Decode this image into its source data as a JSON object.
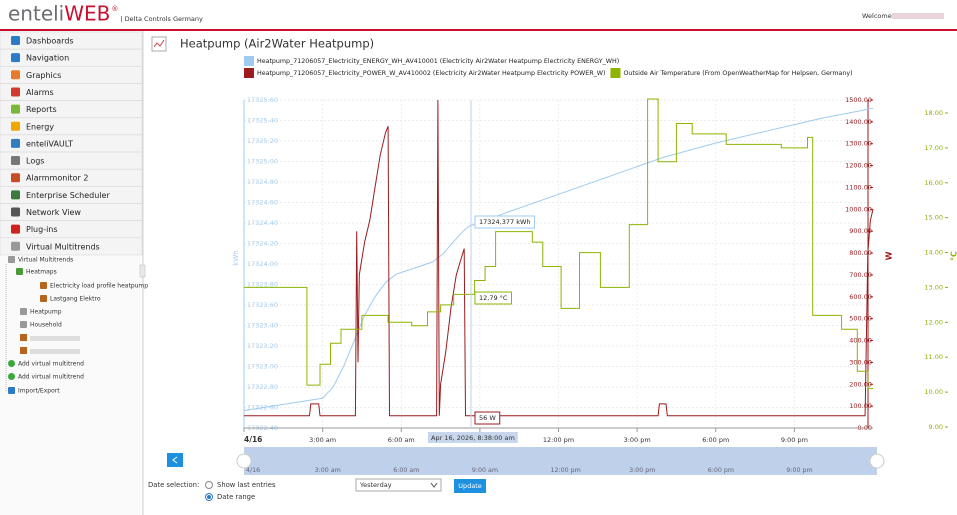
{
  "header": {
    "logo_a": "enteli",
    "logo_b": "WEB",
    "registered": "®",
    "site": "| Delta Controls Germany",
    "welcome": "Welcome"
  },
  "nav": {
    "items": [
      "Dashboards",
      "Navigation",
      "Graphics",
      "Alarms",
      "Reports",
      "Energy",
      "enteliVAULT",
      "Logs",
      "Alarmmonitor 2",
      "Enterprise Scheduler",
      "Network View",
      "Plug-ins",
      "Virtual Multitrends"
    ]
  },
  "tree": {
    "items": [
      "Virtual Multitrends",
      "Heatmaps",
      "Electricity load profile heatpump",
      "Lastgang Elektro",
      "Heatpump",
      "Household",
      "Add virtual multitrend",
      "Add virtual multitrend",
      "Import/Export"
    ]
  },
  "chart_data": {
    "type": "line",
    "title": "Heatpump (Air2Water Heatpump)",
    "xlim": [
      0,
      24
    ],
    "xticks": [
      {
        "value": 0,
        "label": "4/16"
      },
      {
        "value": 3,
        "label": "3:00 am"
      },
      {
        "value": 6,
        "label": "6:00 am"
      },
      {
        "value": 9,
        "label": "9:00 am"
      },
      {
        "value": 12,
        "label": "12:00 pm"
      },
      {
        "value": 15,
        "label": "3:00 pm"
      },
      {
        "value": 18,
        "label": "6:00 pm"
      },
      {
        "value": 21,
        "label": "9:00 pm"
      }
    ],
    "ylim": [
      17322.4,
      17325.6
    ],
    "ylabel": "kWh",
    "yticks": [
      {
        "value": 17322.4,
        "label": "17322.40"
      },
      {
        "value": 17322.6,
        "label": "17322.60"
      },
      {
        "value": 17322.8,
        "label": "17322.80"
      },
      {
        "value": 17323,
        "label": "17323.00"
      },
      {
        "value": 17323.2,
        "label": "17323.20"
      },
      {
        "value": 17323.4,
        "label": "17323.40"
      },
      {
        "value": 17323.6,
        "label": "17323.60"
      },
      {
        "value": 17323.8,
        "label": "17323.80"
      },
      {
        "value": 17324,
        "label": "17324.00"
      },
      {
        "value": 17324.2,
        "label": "17324.20"
      },
      {
        "value": 17324.4,
        "label": "17324.40"
      },
      {
        "value": 17324.6,
        "label": "17324.60"
      },
      {
        "value": 17324.8,
        "label": "17324.80"
      },
      {
        "value": 17325,
        "label": "17325.00"
      },
      {
        "value": 17325.2,
        "label": "17325.20"
      },
      {
        "value": 17325.4,
        "label": "17325.40"
      },
      {
        "value": 17325.6,
        "label": "17325.60"
      }
    ],
    "y2lim": [
      0,
      1500
    ],
    "y2label": "W",
    "y2ticks": [
      {
        "value": 0,
        "label": "0.00"
      },
      {
        "value": 100,
        "label": "100.00"
      },
      {
        "value": 200,
        "label": "200.00"
      },
      {
        "value": 300,
        "label": "300.00"
      },
      {
        "value": 400,
        "label": "400.00"
      },
      {
        "value": 500,
        "label": "500.00"
      },
      {
        "value": 600,
        "label": "600.00"
      },
      {
        "value": 700,
        "label": "700.00"
      },
      {
        "value": 800,
        "label": "800.00"
      },
      {
        "value": 900,
        "label": "900.00"
      },
      {
        "value": 1000,
        "label": "1000.00"
      },
      {
        "value": 1100,
        "label": "1100.00"
      },
      {
        "value": 1200,
        "label": "1200.00"
      },
      {
        "value": 1300,
        "label": "1300.00"
      },
      {
        "value": 1400,
        "label": "1400.00"
      },
      {
        "value": 1500,
        "label": "1500.00"
      }
    ],
    "y3lim": [
      9,
      18
    ],
    "y3label": "°C",
    "y3ticks": [
      {
        "value": 9,
        "label": "9.00"
      },
      {
        "value": 10,
        "label": "10.00"
      },
      {
        "value": 11,
        "label": "11.00"
      },
      {
        "value": 12,
        "label": "12.00"
      },
      {
        "value": 13,
        "label": "13.00"
      },
      {
        "value": 14,
        "label": "14.00"
      },
      {
        "value": 15,
        "label": "15.00"
      },
      {
        "value": 16,
        "label": "16.00"
      },
      {
        "value": 17,
        "label": "17.00"
      },
      {
        "value": 18,
        "label": "18.00"
      }
    ],
    "grid": true,
    "series": [
      {
        "name": "Heatpump_71206057_Electricity_ENERGY_WH_AV410001 (Electricity Air2Water Heatpump Electricity ENERGY_WH)",
        "color": "#9fcbf0",
        "axis": "y",
        "x": [
          0,
          1.5,
          3.0,
          3.4,
          3.8,
          4.2,
          4.6,
          5.0,
          5.4,
          5.8,
          6.5,
          7.2,
          7.6,
          8.0,
          8.4,
          8.6,
          10,
          12,
          14,
          16,
          18,
          20,
          22,
          24
        ],
        "values": [
          17322.57,
          17322.63,
          17322.69,
          17322.8,
          17323.0,
          17323.25,
          17323.5,
          17323.68,
          17323.82,
          17323.9,
          17323.96,
          17324.02,
          17324.1,
          17324.22,
          17324.33,
          17324.37,
          17324.5,
          17324.68,
          17324.86,
          17325.04,
          17325.18,
          17325.3,
          17325.42,
          17325.52
        ]
      },
      {
        "name": "Heatpump_71206057_Electricity_POWER_W_AV410002 (Electricity Air2Water Heatpump Electricity POWER_W)",
        "color": "#9b1b1e",
        "axis": "y2",
        "x": [
          0,
          2.5,
          2.55,
          2.85,
          2.9,
          4.25,
          4.3,
          4.35,
          4.4,
          4.6,
          4.8,
          5.0,
          5.2,
          5.4,
          5.5,
          5.55,
          5.6,
          7.35,
          7.4,
          7.45,
          7.5,
          7.7,
          7.9,
          8.1,
          8.3,
          8.4,
          8.45,
          8.5,
          15.8,
          15.85,
          16.1,
          16.15,
          23.7,
          23.8,
          23.9,
          24
        ],
        "values": [
          56,
          56,
          110,
          110,
          56,
          56,
          900,
          300,
          700,
          850,
          950,
          1100,
          1250,
          1350,
          1380,
          56,
          56,
          56,
          1500,
          56,
          200,
          350,
          550,
          700,
          780,
          820,
          56,
          56,
          56,
          110,
          110,
          56,
          56,
          800,
          950,
          1000
        ]
      },
      {
        "name": "Outside Air Temperature (From OpenWeatherMap for Helpsen, Germany)",
        "color": "#8cb400",
        "axis": "y3",
        "step": true,
        "x": [
          0,
          2.4,
          2.9,
          3.3,
          3.7,
          4.5,
          5.5,
          6.4,
          7.0,
          7.5,
          8.0,
          8.8,
          9.2,
          9.6,
          11.0,
          11.4,
          12.1,
          12.8,
          13.6,
          14.7,
          15.4,
          15.8,
          16.5,
          17.1,
          18.4,
          20.5,
          21.5,
          21.7,
          22.8,
          23.4,
          23.8,
          24
        ],
        "values": [
          13.0,
          10.2,
          10.8,
          11.4,
          11.8,
          12.2,
          12.0,
          11.9,
          12.3,
          12.5,
          12.8,
          13.2,
          13.6,
          14.6,
          14.3,
          13.6,
          12.4,
          14.0,
          13.0,
          14.8,
          18.4,
          16.6,
          17.7,
          17.4,
          17.1,
          17.0,
          17.3,
          12.2,
          11.8,
          10.6,
          10.1,
          10.1
        ]
      }
    ],
    "tooltips": [
      "17324,377 kWh",
      "12,79 °C",
      "56 W"
    ],
    "crosshair_label": "Apr 16, 2026, 8:38:00 am"
  },
  "controls": {
    "label": "Date selection:",
    "option1": "Show last entries",
    "option2": "Date range",
    "select": "Yesterday",
    "button": "Update"
  }
}
